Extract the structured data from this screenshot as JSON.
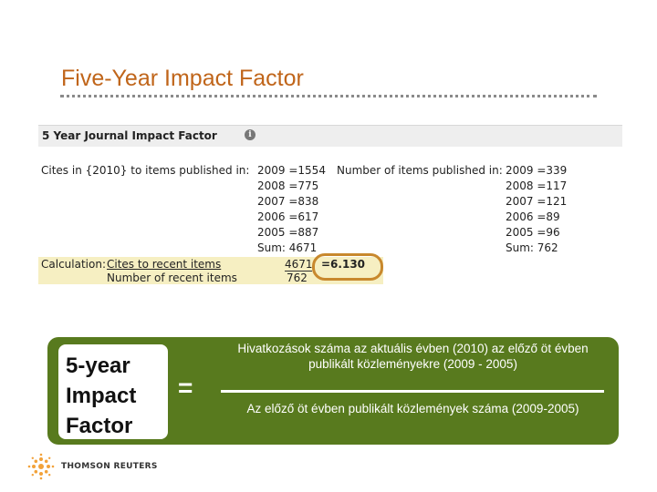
{
  "slide": {
    "title": "Five-Year Impact Factor"
  },
  "jcr": {
    "header_label": "5 Year Journal Impact Factor",
    "info_icon": "info-icon",
    "cites_label": "Cites in {2010} to items published in:",
    "cites_rows": [
      "2009 =1554",
      "2008 =775",
      "2007 =838",
      "2006 =617",
      "2005 =887",
      "Sum:   4671"
    ],
    "items_label": "Number of items published in:",
    "items_rows": [
      "2009 =339",
      "2008 =117",
      "2007 =121",
      "2006 =89",
      "2005 =96",
      "Sum:   762"
    ],
    "calculation_label": "Calculation:",
    "calc_numerator_label": "Cites to recent items",
    "calc_denominator_label": "Number of recent items",
    "calc_numerator": "4671",
    "calc_denominator": "762",
    "calc_result": "=6.130"
  },
  "formula": {
    "lhs": "5-year Impact Factor",
    "equals": "=",
    "numerator": "Hivatkozások száma az aktuális évben  (2010) az előző öt évben publikált közleményekre  (2009 - 2005)",
    "denominator": "Az előző öt évben publikált közlemények száma (2009-2005)",
    "box_color": "#587a1e"
  },
  "logo": {
    "icon": "thomson-reuters-logo-icon",
    "text": "THOMSON REUTERS"
  }
}
